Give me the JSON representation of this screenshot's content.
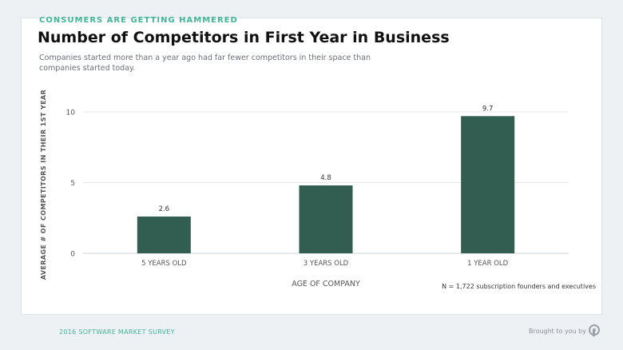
{
  "header": {
    "kicker": "CONSUMERS ARE GETTING HAMMERED",
    "title": "Number of Competitors in First Year in Business",
    "subtitle": "Companies started more than a year ago had far fewer competitors in their space than companies started today."
  },
  "footnote": "N = 1,722 subscription founders and executives",
  "footer": {
    "survey": "2016 SOFTWARE MARKET SURVEY",
    "brought": "Brought to you by"
  },
  "colors": {
    "bar": "#325e51",
    "accent": "#3fb59a"
  },
  "chart_data": {
    "type": "bar",
    "categories": [
      "5 YEARS OLD",
      "3 YEARS OLD",
      "1 YEAR OLD"
    ],
    "values": [
      2.6,
      4.8,
      9.7
    ],
    "data_labels": [
      "2.6",
      "4.8",
      "9.7"
    ],
    "yticks": [
      0,
      5,
      10
    ],
    "ylim": [
      0,
      10
    ],
    "xlabel": "AGE OF COMPANY",
    "ylabel": "AVERAGE # OF COMPETITORS IN THEIR 1ST YEAR",
    "grid": true,
    "legend": "none"
  }
}
